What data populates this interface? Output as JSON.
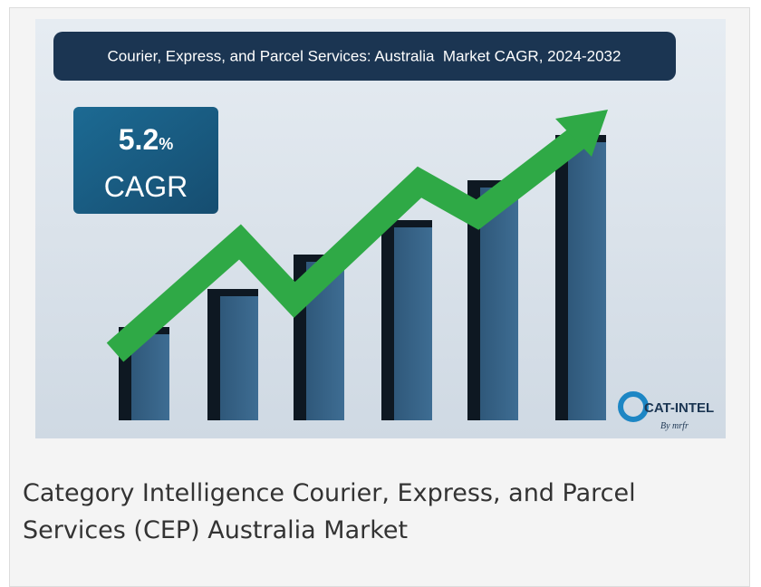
{
  "image": {
    "title": "Courier, Express, and Parcel Services: Australia  Market CAGR, 2024-2032",
    "cagr_value": "5.2",
    "cagr_unit": "%",
    "cagr_label": "CAGR",
    "logo": "CAT-INTEL",
    "logo_sub": "By mrfr"
  },
  "caption": "Category Intelligence Courier, Express, and Parcel Services (CEP) Australia Market"
}
